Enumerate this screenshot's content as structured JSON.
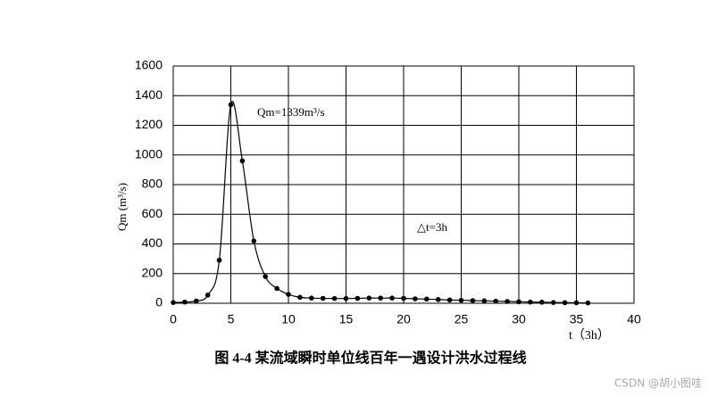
{
  "chart_data": {
    "type": "line",
    "title": "图 4-4 某流域瞬时单位线百年一遇设计洪水过程线",
    "x_label": "t（3h）",
    "y_label": "Qm (m³/s)",
    "annotations": [
      "Qm=1339m³/s",
      "△t=3h"
    ],
    "watermark": "CSDN @胡小图哇",
    "x": [
      0,
      1,
      2,
      3,
      4,
      5,
      6,
      7,
      8,
      9,
      10,
      11,
      12,
      13,
      14,
      15,
      16,
      17,
      18,
      19,
      20,
      21,
      22,
      23,
      24,
      25,
      26,
      27,
      28,
      29,
      30,
      31,
      32,
      33,
      34,
      35,
      36
    ],
    "series": [
      {
        "name": "Q",
        "color": "#000000",
        "values": [
          5,
          8,
          15,
          55,
          290,
          1339,
          960,
          420,
          180,
          100,
          60,
          40,
          35,
          33,
          32,
          32,
          33,
          35,
          35,
          35,
          33,
          30,
          28,
          25,
          22,
          20,
          18,
          16,
          14,
          12,
          10,
          8,
          7,
          5,
          4,
          3,
          2
        ]
      }
    ],
    "xlim": [
      0,
      40
    ],
    "xticks": [
      0,
      5,
      10,
      15,
      20,
      25,
      30,
      35,
      40
    ],
    "ylim": [
      0,
      1600
    ],
    "yticks": [
      0,
      200,
      400,
      600,
      800,
      1000,
      1200,
      1400,
      1600
    ],
    "grid": true
  }
}
